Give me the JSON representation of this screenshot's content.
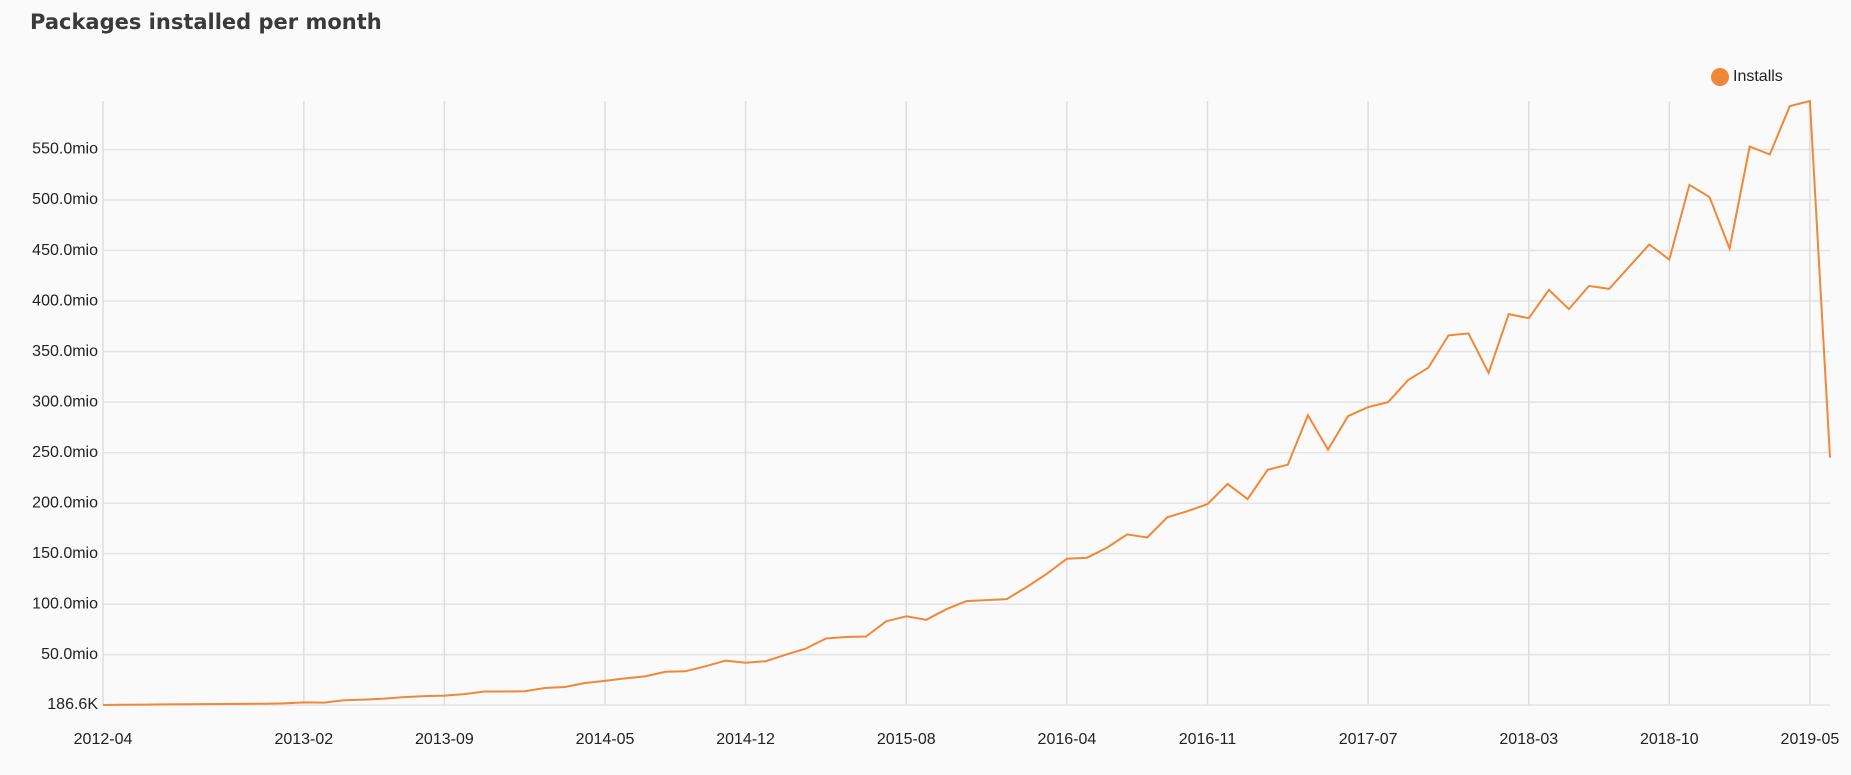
{
  "chart_data": {
    "type": "line",
    "title": "Packages installed per month",
    "categories": [
      "2012-04",
      "2012-05",
      "2012-06",
      "2012-07",
      "2012-08",
      "2012-09",
      "2012-10",
      "2012-11",
      "2012-12",
      "2013-01",
      "2013-02",
      "2013-03",
      "2013-04",
      "2013-05",
      "2013-06",
      "2013-07",
      "2013-08",
      "2013-09",
      "2013-10",
      "2013-11",
      "2013-12",
      "2014-01",
      "2014-02",
      "2014-03",
      "2014-04",
      "2014-05",
      "2014-06",
      "2014-07",
      "2014-08",
      "2014-09",
      "2014-10",
      "2014-11",
      "2014-12",
      "2015-01",
      "2015-02",
      "2015-03",
      "2015-04",
      "2015-05",
      "2015-06",
      "2015-07",
      "2015-08",
      "2015-09",
      "2015-10",
      "2015-11",
      "2015-12",
      "2016-01",
      "2016-02",
      "2016-03",
      "2016-04",
      "2016-05",
      "2016-06",
      "2016-07",
      "2016-08",
      "2016-09",
      "2016-10",
      "2016-11",
      "2016-12",
      "2017-01",
      "2017-02",
      "2017-03",
      "2017-04",
      "2017-05",
      "2017-06",
      "2017-07",
      "2017-08",
      "2017-09",
      "2017-10",
      "2017-11",
      "2017-12",
      "2018-01",
      "2018-02",
      "2018-03",
      "2018-04",
      "2018-05",
      "2018-06",
      "2018-07",
      "2018-08",
      "2018-09",
      "2018-10",
      "2018-11",
      "2018-12",
      "2019-01",
      "2019-02",
      "2019-03",
      "2019-04",
      "2019-05",
      "2019-06"
    ],
    "series": [
      {
        "name": "Installs",
        "color": "#f0883a",
        "values": [
          186600,
          400000,
          600000,
          800000,
          1000000,
          1100000,
          1200000,
          1300000,
          1500000,
          1800000,
          2800000,
          2600000,
          4800000,
          5500000,
          6500000,
          8000000,
          9000000,
          9500000,
          11000000,
          13500000,
          13500000,
          13800000,
          17000000,
          18000000,
          22000000,
          24000000,
          26500000,
          28500000,
          33000000,
          33500000,
          38500000,
          44000000,
          42000000,
          43500000,
          50000000,
          56000000,
          66000000,
          67500000,
          68000000,
          83000000,
          88000000,
          84500000,
          95000000,
          103000000,
          104000000,
          105000000,
          117000000,
          130000000,
          145000000,
          146000000,
          156000000,
          169000000,
          166000000,
          186000000,
          192000000,
          199000000,
          219000000,
          204000000,
          233000000,
          238000000,
          287000000,
          253000000,
          286000000,
          295000000,
          300000000,
          322000000,
          334000000,
          366000000,
          368000000,
          329000000,
          387000000,
          383000000,
          411000000,
          392000000,
          415000000,
          412000000,
          434000000,
          456000000,
          441000000,
          515000000,
          503000000,
          452000000,
          553000000,
          545000000,
          593000000,
          598000000,
          245000000
        ]
      }
    ],
    "xticks": [
      "2012-04",
      "2013-02",
      "2013-09",
      "2014-05",
      "2014-12",
      "2015-08",
      "2016-04",
      "2016-11",
      "2017-07",
      "2018-03",
      "2018-10",
      "2019-05"
    ],
    "ylim": [
      186600,
      598000000
    ],
    "yticks": [
      {
        "value": 186600,
        "label": "186.6K"
      },
      {
        "value": 50000000,
        "label": "50.0mio"
      },
      {
        "value": 100000000,
        "label": "100.0mio"
      },
      {
        "value": 150000000,
        "label": "150.0mio"
      },
      {
        "value": 200000000,
        "label": "200.0mio"
      },
      {
        "value": 250000000,
        "label": "250.0mio"
      },
      {
        "value": 300000000,
        "label": "300.0mio"
      },
      {
        "value": 350000000,
        "label": "350.0mio"
      },
      {
        "value": 400000000,
        "label": "400.0mio"
      },
      {
        "value": 450000000,
        "label": "450.0mio"
      },
      {
        "value": 500000000,
        "label": "500.0mio"
      },
      {
        "value": 550000000,
        "label": "550.0mio"
      }
    ],
    "grid": true,
    "legend": "top-right"
  }
}
